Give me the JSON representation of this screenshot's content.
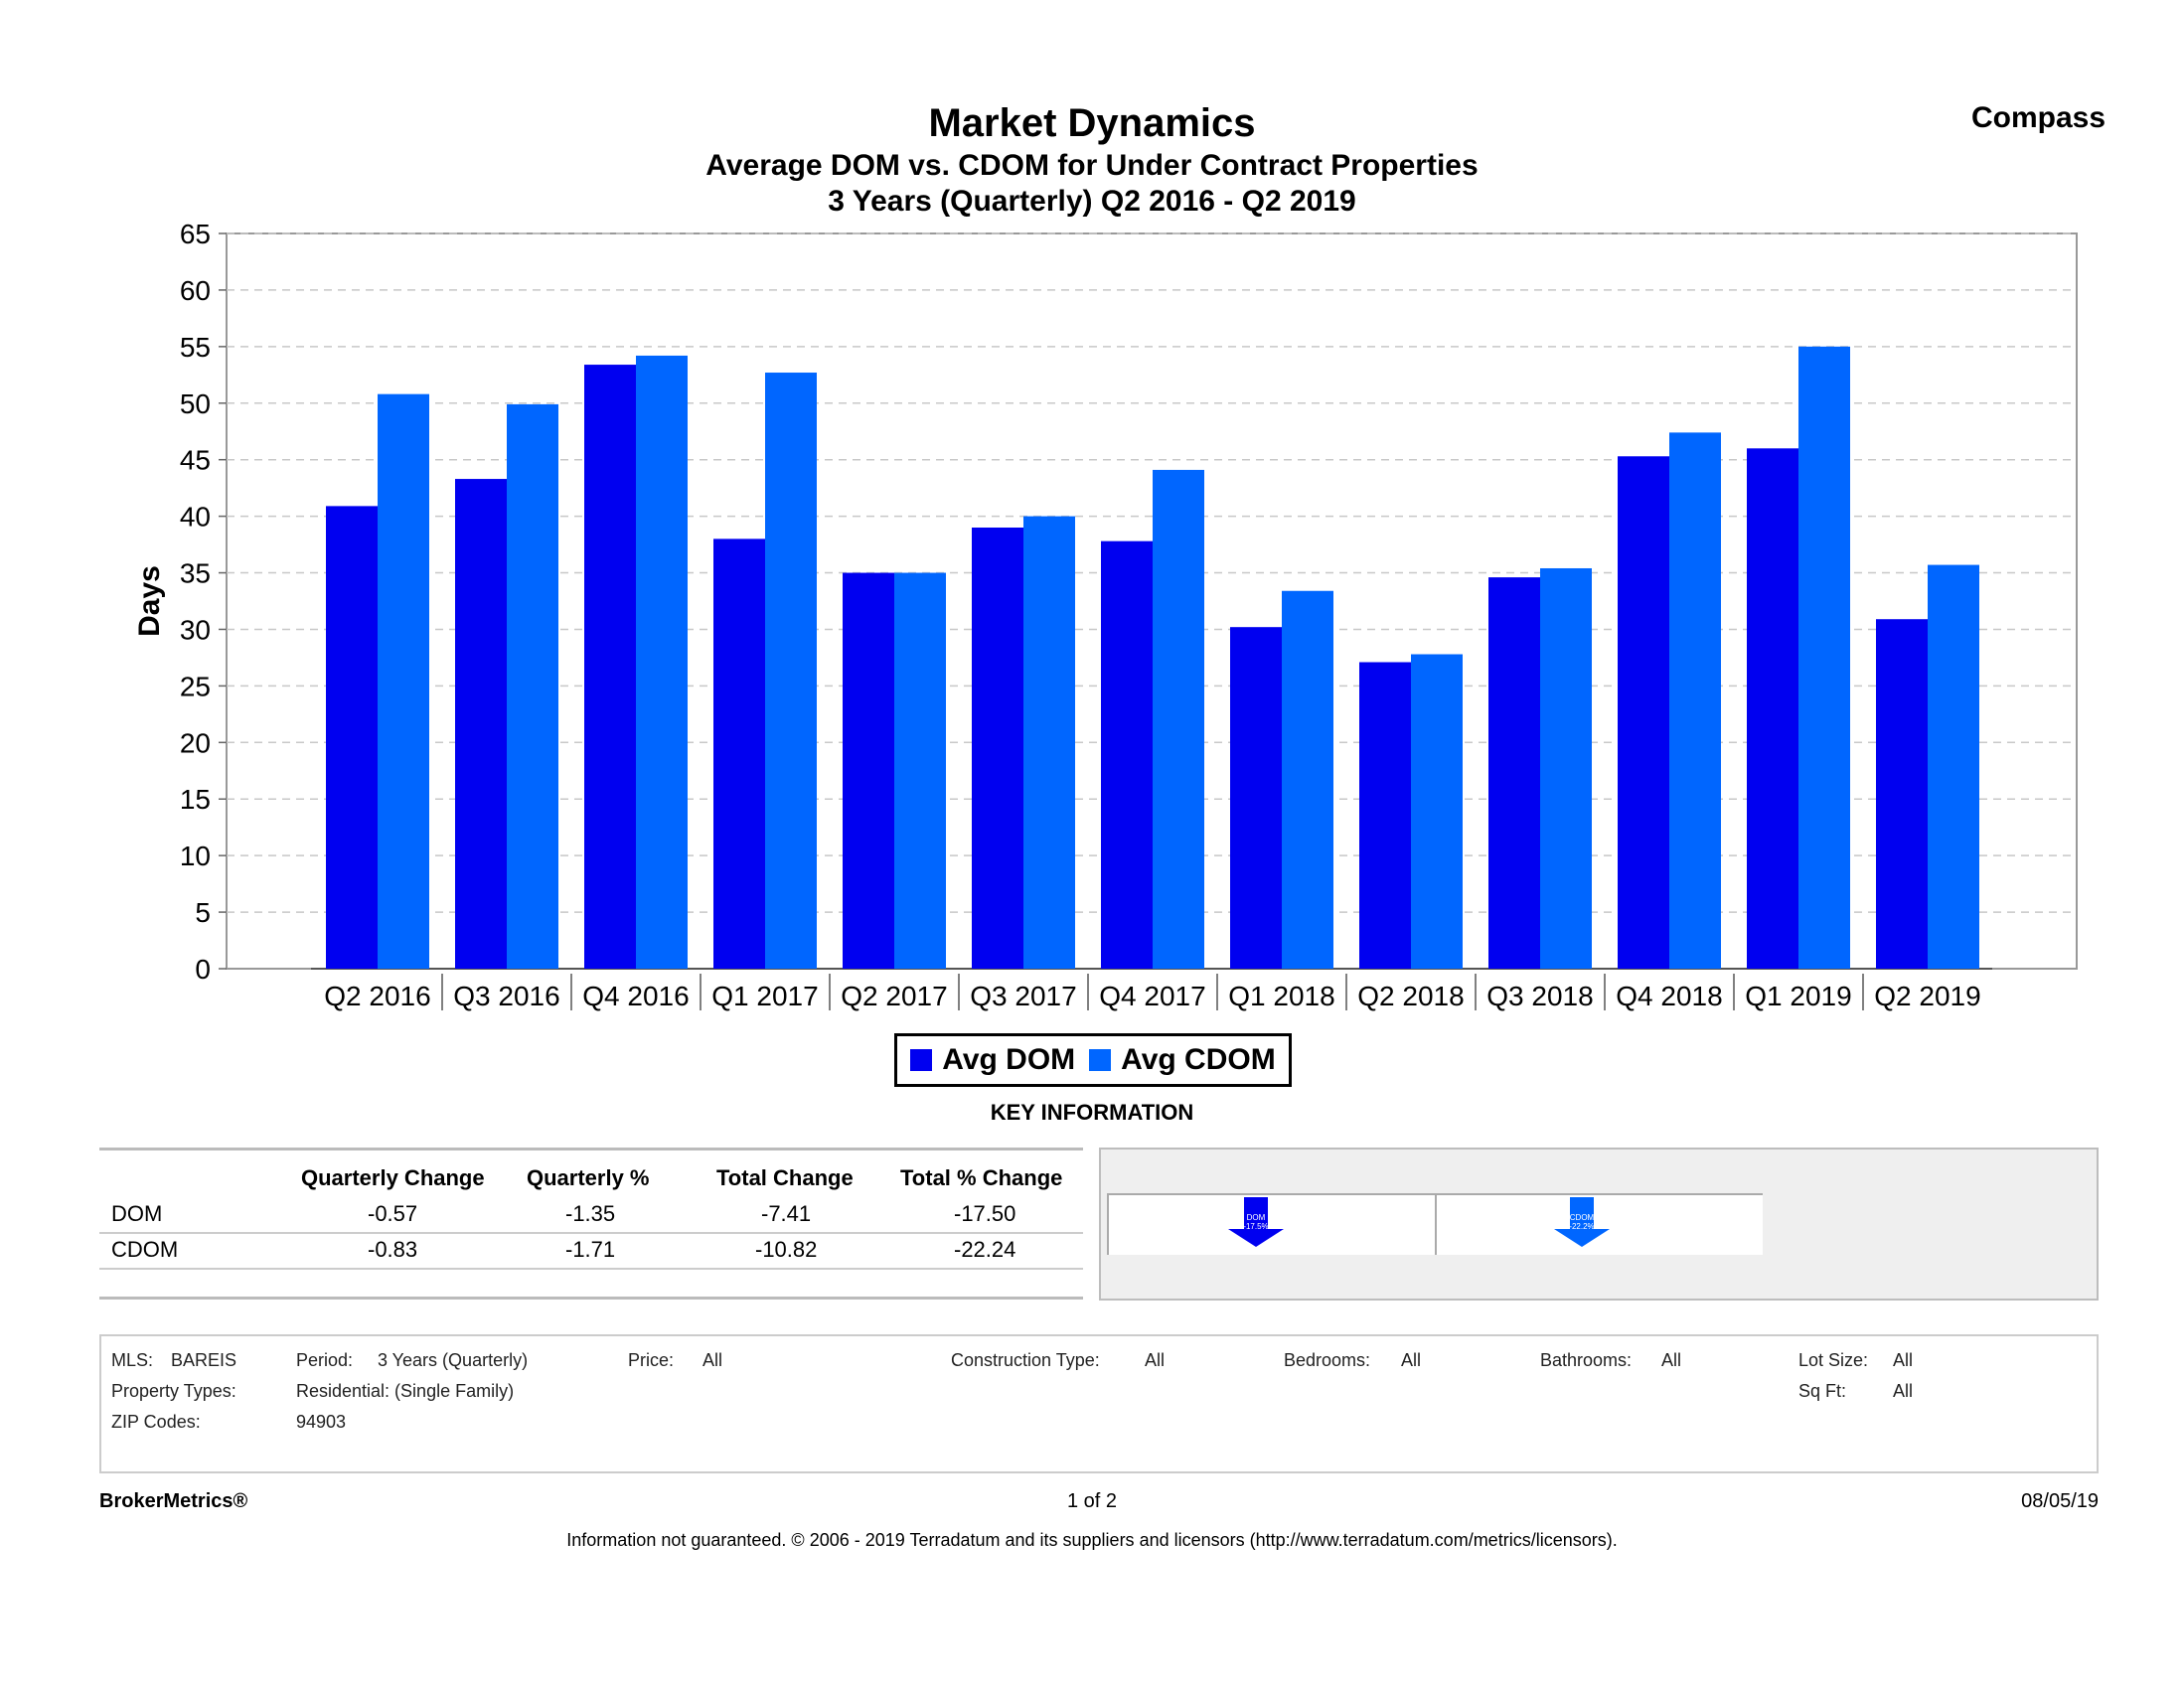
{
  "header": {
    "title": "Market Dynamics",
    "subtitle": "Average DOM vs. CDOM for Under Contract Properties",
    "period": "3 Years (Quarterly) Q2 2016 - Q2 2019",
    "brand": "Compass"
  },
  "chart_data": {
    "type": "bar",
    "title": "Market Dynamics",
    "ylabel": "Days",
    "xlabel": "",
    "ylim": [
      0,
      65
    ],
    "yticks": [
      "0",
      "5",
      "10",
      "15",
      "20",
      "25",
      "30",
      "35",
      "40",
      "45",
      "50",
      "55",
      "60",
      "65"
    ],
    "categories": [
      "Q2 2016",
      "Q3 2016",
      "Q4 2016",
      "Q1 2017",
      "Q2 2017",
      "Q3 2017",
      "Q4 2017",
      "Q1 2018",
      "Q2 2018",
      "Q3 2018",
      "Q4 2018",
      "Q1 2019",
      "Q2 2019"
    ],
    "series": [
      {
        "name": "Avg DOM",
        "color": "#0000f0",
        "values": [
          40.9,
          43.3,
          53.4,
          38.0,
          35.0,
          39.0,
          37.8,
          30.2,
          27.1,
          34.6,
          45.3,
          46.0,
          30.9
        ]
      },
      {
        "name": "Avg CDOM",
        "color": "#0066ff",
        "values": [
          50.8,
          49.9,
          54.2,
          52.7,
          35.0,
          40.0,
          44.1,
          33.4,
          27.8,
          35.4,
          47.4,
          55.0,
          35.7
        ]
      }
    ],
    "legend": "bottom-center",
    "grid": true
  },
  "legend_labels": [
    "Avg DOM",
    "Avg CDOM"
  ],
  "key_info": {
    "title": "KEY INFORMATION",
    "headers": [
      "Quarterly Change",
      "Quarterly %",
      "Total Change",
      "Total % Change"
    ],
    "rows": [
      {
        "label": "DOM",
        "values": [
          "-0.57",
          "-1.35",
          "-7.41",
          "-17.50"
        ]
      },
      {
        "label": "CDOM",
        "values": [
          "-0.83",
          "-1.71",
          "-10.82",
          "-22.24"
        ]
      }
    ],
    "arrows": [
      {
        "label": "DOM",
        "pct": "-17.5%",
        "color": "#0000f0"
      },
      {
        "label": "CDOM",
        "pct": "-22.2%",
        "color": "#0066ff"
      }
    ]
  },
  "criteria": {
    "mls_label": "MLS:",
    "mls": "BAREIS",
    "period_label": "Period:",
    "period": "3 Years (Quarterly)",
    "price_label": "Price:",
    "price": "All",
    "construction_label": "Construction Type:",
    "construction": "All",
    "bedrooms_label": "Bedrooms:",
    "bedrooms": "All",
    "bathrooms_label": "Bathrooms:",
    "bathrooms": "All",
    "lot_label": "Lot Size:",
    "lot": "All",
    "property_types_label": "Property Types:",
    "property_types": "Residential: (Single Family)",
    "sqft_label": "Sq Ft:",
    "sqft": "All",
    "zip_label": "ZIP Codes:",
    "zip": "94903"
  },
  "footer": {
    "left": "BrokerMetrics®",
    "center": "1 of 2",
    "right": "08/05/19",
    "disclaimer": "Information not guaranteed.  © 2006 - 2019 Terradatum and its suppliers and licensors (http://www.terradatum.com/metrics/licensors)."
  }
}
